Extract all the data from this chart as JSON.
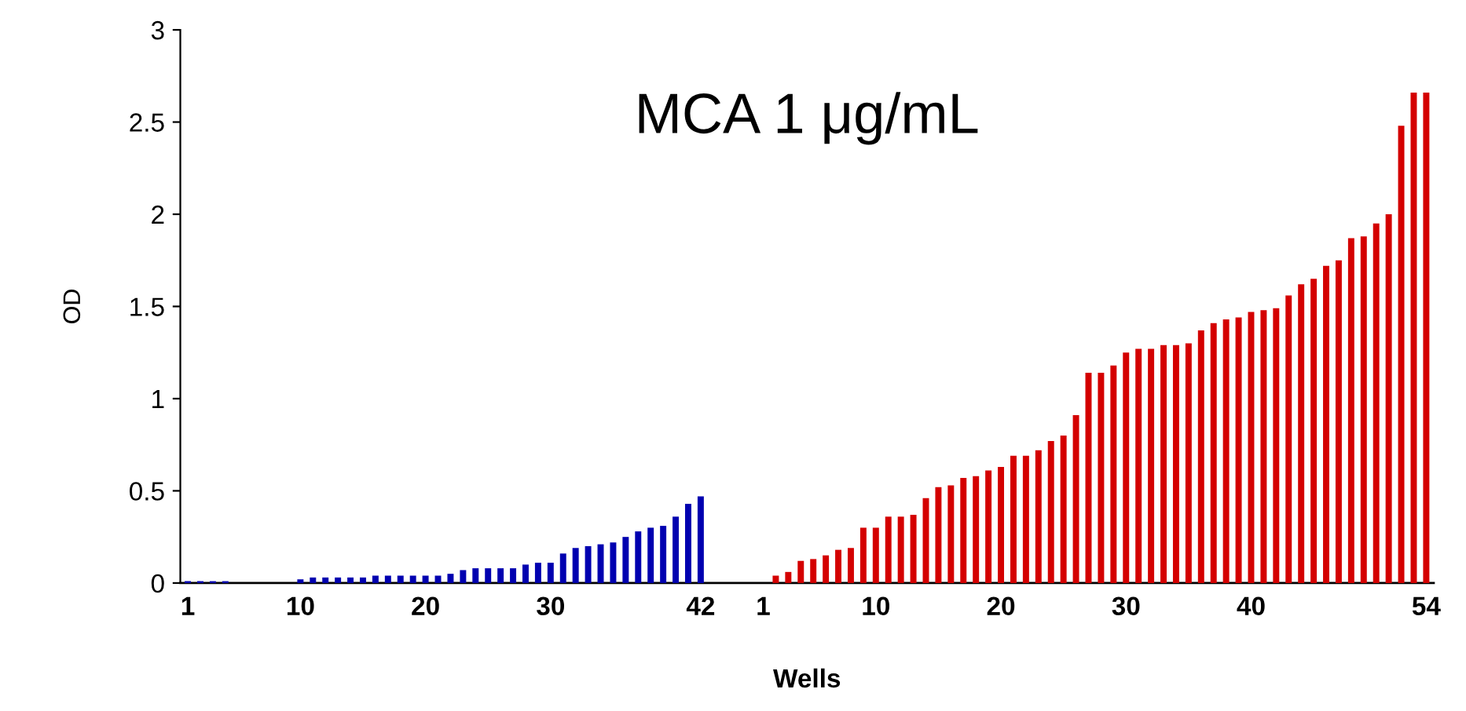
{
  "chart_data": {
    "type": "bar",
    "title": "MCA 1 μg/mL",
    "xlabel": "Wells",
    "ylabel": "OD",
    "categories": [
      "1",
      null,
      null,
      null,
      null,
      null,
      null,
      null,
      null,
      "10",
      null,
      null,
      null,
      null,
      null,
      null,
      null,
      null,
      null,
      "20",
      null,
      null,
      null,
      null,
      null,
      null,
      null,
      null,
      null,
      "30",
      null,
      null,
      null,
      null,
      null,
      null,
      null,
      null,
      null,
      null,
      null,
      "42",
      null,
      null,
      null,
      null,
      "1",
      null,
      null,
      null,
      null,
      null,
      null,
      null,
      null,
      "10",
      null,
      null,
      null,
      null,
      null,
      null,
      null,
      null,
      null,
      "20",
      null,
      null,
      null,
      null,
      null,
      null,
      null,
      null,
      null,
      "30",
      null,
      null,
      null,
      null,
      null,
      null,
      null,
      null,
      null,
      "40",
      null,
      null,
      null,
      null,
      null,
      null,
      null,
      null,
      null,
      null,
      null,
      null,
      null,
      "54"
    ],
    "series": [
      {
        "color": "#0000b0",
        "values": [
          0.01,
          0.01,
          0.01,
          0.01,
          0,
          0,
          0,
          0,
          0,
          0.02,
          0.03,
          0.03,
          0.03,
          0.03,
          0.03,
          0.04,
          0.04,
          0.04,
          0.04,
          0.04,
          0.04,
          0.05,
          0.07,
          0.08,
          0.08,
          0.08,
          0.08,
          0.1,
          0.11,
          0.11,
          0.16,
          0.19,
          0.2,
          0.21,
          0.22,
          0.25,
          0.28,
          0.3,
          0.31,
          0.36,
          0.43,
          0.47,
          null,
          null,
          null,
          null,
          null,
          null,
          null,
          null,
          null,
          null,
          null,
          null,
          null,
          null,
          null,
          null,
          null,
          null,
          null,
          null,
          null,
          null,
          null,
          null,
          null,
          null,
          null,
          null,
          null,
          null,
          null,
          null,
          null,
          null,
          null,
          null,
          null,
          null,
          null,
          null,
          null,
          null,
          null,
          null,
          null,
          null,
          null,
          null,
          null,
          null,
          null,
          null,
          null,
          null,
          null,
          null,
          null,
          null
        ]
      },
      {
        "color": "#d40000",
        "values": [
          null,
          null,
          null,
          null,
          null,
          null,
          null,
          null,
          null,
          null,
          null,
          null,
          null,
          null,
          null,
          null,
          null,
          null,
          null,
          null,
          null,
          null,
          null,
          null,
          null,
          null,
          null,
          null,
          null,
          null,
          null,
          null,
          null,
          null,
          null,
          null,
          null,
          null,
          null,
          null,
          null,
          null,
          null,
          null,
          null,
          null,
          0,
          0.04,
          0.06,
          0.12,
          0.13,
          0.15,
          0.18,
          0.19,
          0.3,
          0.3,
          0.36,
          0.36,
          0.37,
          0.46,
          0.52,
          0.53,
          0.57,
          0.58,
          0.61,
          0.63,
          0.69,
          0.69,
          0.72,
          0.77,
          0.8,
          0.91,
          1.14,
          1.14,
          1.18,
          1.25,
          1.27,
          1.27,
          1.29,
          1.29,
          1.3,
          1.37,
          1.41,
          1.43,
          1.44,
          1.47,
          1.48,
          1.49,
          1.56,
          1.62,
          1.65,
          1.72,
          1.75,
          1.87,
          1.88,
          1.95,
          2.0,
          2.48,
          2.66,
          2.66
        ]
      }
    ],
    "ylim": [
      0,
      3
    ],
    "yticks": [
      0,
      0.5,
      1,
      1.5,
      2,
      2.5,
      3
    ],
    "grid": false,
    "legend": false
  }
}
